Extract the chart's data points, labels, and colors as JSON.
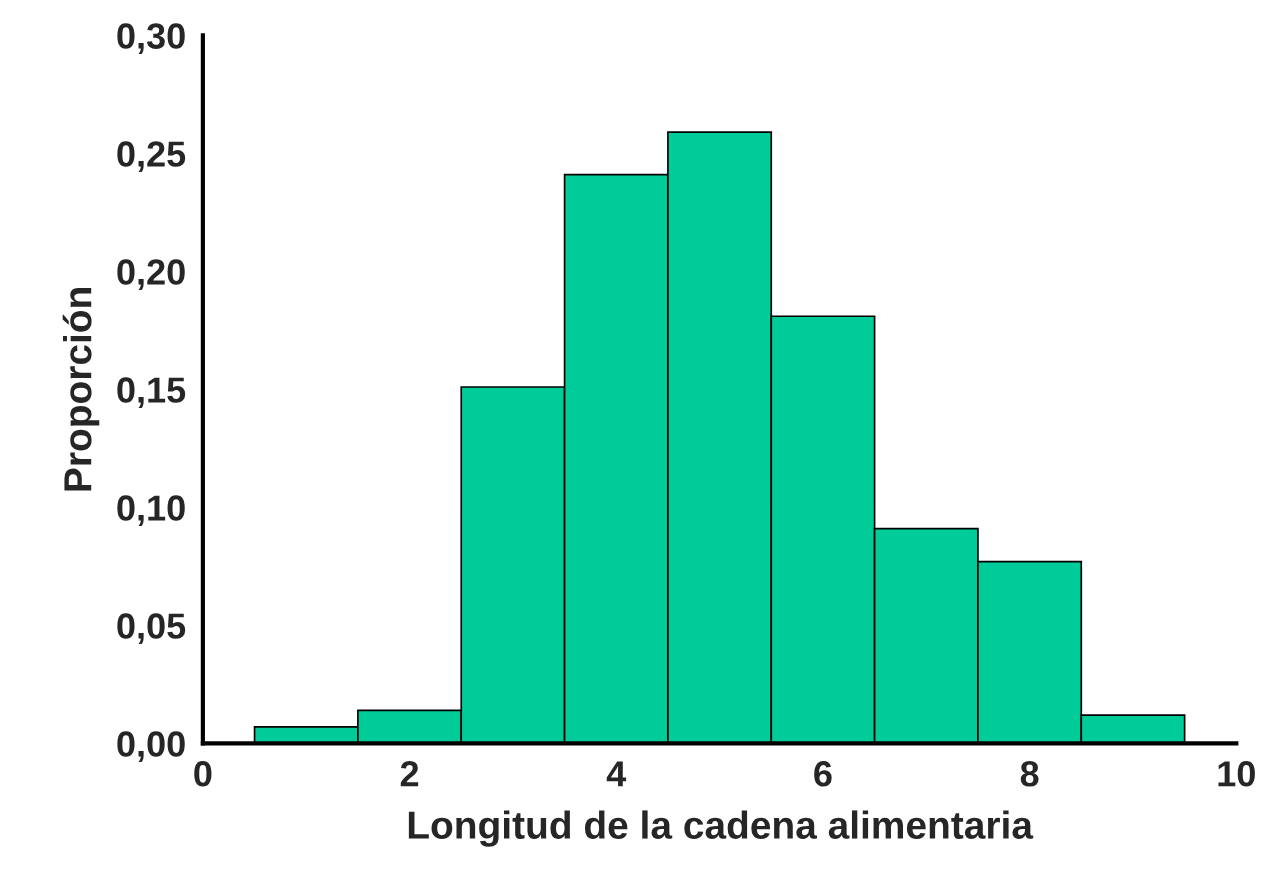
{
  "chart_data": {
    "type": "histogram",
    "xlabel": "Longitud de la cadena alimentaria",
    "ylabel": "Proporción",
    "bins": [
      0.5,
      1.5,
      2.5,
      3.5,
      4.5,
      5.5,
      6.5,
      7.5,
      8.5,
      9.5
    ],
    "values": [
      0.007,
      0.014,
      0.151,
      0.241,
      0.259,
      0.181,
      0.091,
      0.077,
      0.012
    ],
    "color": "#00cc99",
    "xlim": [
      0,
      10
    ],
    "xticks": [
      0,
      2,
      4,
      6,
      8,
      10
    ],
    "ylim": [
      0,
      0.3
    ],
    "yticks": [
      {
        "value": 0,
        "label": "0,00"
      },
      {
        "value": 0.05,
        "label": "0,05"
      },
      {
        "value": 0.1,
        "label": "0,10"
      },
      {
        "value": 0.15,
        "label": "0,15"
      },
      {
        "value": 0.2,
        "label": "0,20"
      },
      {
        "value": 0.25,
        "label": "0,25"
      },
      {
        "value": 0.3,
        "label": "0,30"
      }
    ],
    "grid": false
  }
}
